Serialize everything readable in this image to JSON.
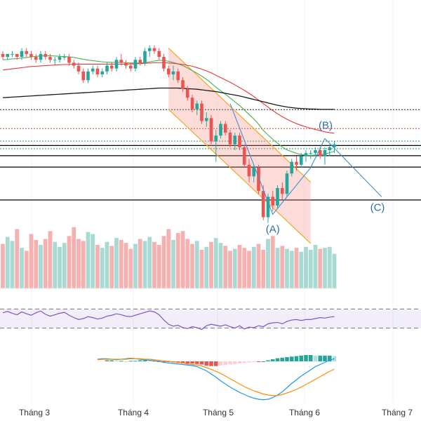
{
  "chart_data": {
    "type": "candlestick",
    "x_axis": {
      "tick_labels": [
        "Tháng 3",
        "Tháng 4",
        "Tháng 5",
        "Tháng 6",
        "Tháng 7"
      ]
    },
    "wave_labels": {
      "a": "(A)",
      "b": "(B)",
      "c": "(C)"
    },
    "price_pane": {
      "candles_ohlc": [
        [
          86,
          87,
          84,
          85
        ],
        [
          85,
          86,
          84,
          86
        ],
        [
          86,
          87,
          85,
          86
        ],
        [
          86,
          86,
          84,
          85
        ],
        [
          85,
          88,
          84,
          87
        ],
        [
          87,
          88,
          85,
          86
        ],
        [
          86,
          87,
          84,
          85
        ],
        [
          85,
          86,
          83,
          84
        ],
        [
          84,
          87,
          83,
          86
        ],
        [
          86,
          87,
          84,
          85
        ],
        [
          85,
          86,
          83,
          84
        ],
        [
          84,
          85,
          82,
          84
        ],
        [
          84,
          86,
          83,
          85
        ],
        [
          85,
          86,
          84,
          85
        ],
        [
          85,
          86,
          82,
          83
        ],
        [
          83,
          84,
          81,
          82
        ],
        [
          82,
          83,
          79,
          80
        ],
        [
          80,
          81,
          76,
          77
        ],
        [
          77,
          81,
          76,
          80
        ],
        [
          80,
          82,
          79,
          81
        ],
        [
          81,
          82,
          78,
          79
        ],
        [
          79,
          81,
          78,
          80
        ],
        [
          80,
          83,
          79,
          82
        ],
        [
          82,
          83,
          80,
          81
        ],
        [
          81,
          85,
          80,
          84
        ],
        [
          84,
          86,
          82,
          83
        ],
        [
          83,
          84,
          81,
          82
        ],
        [
          82,
          83,
          80,
          81
        ],
        [
          81,
          85,
          80,
          84
        ],
        [
          84,
          85,
          82,
          83
        ],
        [
          83,
          88,
          82,
          87
        ],
        [
          87,
          89,
          85,
          88
        ],
        [
          88,
          89,
          86,
          87
        ],
        [
          87,
          88,
          84,
          85
        ],
        [
          85,
          86,
          80,
          81
        ],
        [
          81,
          82,
          78,
          79
        ],
        [
          79,
          82,
          77,
          80
        ],
        [
          80,
          81,
          76,
          77
        ],
        [
          77,
          78,
          73,
          74
        ],
        [
          74,
          75,
          70,
          71
        ],
        [
          71,
          72,
          66,
          67
        ],
        [
          67,
          70,
          65,
          69
        ],
        [
          69,
          70,
          62,
          63
        ],
        [
          63,
          66,
          61,
          64
        ],
        [
          64,
          65,
          55,
          56
        ],
        [
          56,
          60,
          49,
          58
        ],
        [
          58,
          63,
          57,
          62
        ],
        [
          62,
          63,
          58,
          59
        ],
        [
          59,
          60,
          54,
          55
        ],
        [
          55,
          59,
          53,
          58
        ],
        [
          58,
          59,
          53,
          54
        ],
        [
          54,
          55,
          47,
          48
        ],
        [
          48,
          50,
          42,
          44
        ],
        [
          44,
          48,
          42,
          47
        ],
        [
          47,
          48,
          38,
          39
        ],
        [
          39,
          41,
          29,
          30
        ],
        [
          30,
          38,
          28,
          37
        ],
        [
          37,
          39,
          32,
          34
        ],
        [
          34,
          41,
          33,
          40
        ],
        [
          40,
          42,
          36,
          38
        ],
        [
          38,
          46,
          37,
          45
        ],
        [
          45,
          50,
          44,
          49
        ],
        [
          49,
          51,
          46,
          48
        ],
        [
          48,
          52,
          47,
          51
        ],
        [
          51,
          53,
          49,
          52
        ],
        [
          52,
          53,
          50,
          52
        ],
        [
          52,
          54,
          51,
          53
        ],
        [
          53,
          54,
          50,
          51
        ],
        [
          51,
          54,
          48,
          53
        ],
        [
          53,
          55,
          51,
          54
        ],
        [
          54,
          56,
          52,
          55
        ]
      ],
      "moving_averages": [
        {
          "color": "#4caf50",
          "values": [
            84,
            84.1,
            84.3,
            84.4,
            84.6,
            84.8,
            85,
            85.2,
            85.3,
            85.4,
            85.4,
            85.3,
            85.2,
            85.1,
            85,
            84.8,
            84.5,
            84.2,
            83.9,
            83.7,
            83.5,
            83.3,
            83.2,
            83.1,
            83.1,
            83.1,
            83,
            82.9,
            82.9,
            82.9,
            83,
            83.3,
            83.6,
            83.8,
            83.8,
            83.5,
            83.1,
            82.6,
            82,
            81.2,
            80.3,
            79.4,
            78.4,
            77.3,
            76,
            74.6,
            73.4,
            72.2,
            70.9,
            69.6,
            68.3,
            66.8,
            65.2,
            63.7,
            61.9,
            59.8,
            58.2,
            56.7,
            55.4,
            54.1,
            53.1,
            52.5,
            51.9,
            51.5,
            51.3,
            51.2,
            51.3,
            51.4,
            51.7,
            52.1,
            52.6
          ]
        },
        {
          "color": "#e53935",
          "values": [
            80.5,
            80.7,
            80.9,
            81.1,
            81.3,
            81.5,
            81.7,
            81.8,
            81.9,
            82,
            82.1,
            82.2,
            82.3,
            82.4,
            82.4,
            82.5,
            82.5,
            82.5,
            82.5,
            82.5,
            82.5,
            82.5,
            82.5,
            82.5,
            82.5,
            82.5,
            82.5,
            82.6,
            82.6,
            82.7,
            82.8,
            82.9,
            83,
            83,
            83,
            82.9,
            82.8,
            82.6,
            82.4,
            82.1,
            81.8,
            81.3,
            80.8,
            80.2,
            79.5,
            78.7,
            77.9,
            77.1,
            76.3,
            75.4,
            74.5,
            73.5,
            72.5,
            71.4,
            70.2,
            69,
            67.8,
            66.6,
            65.5,
            64.5,
            63.6,
            62.8,
            62.1,
            61.5,
            61,
            60.5,
            60.1,
            59.7,
            59.3,
            59,
            58.8
          ]
        },
        {
          "color": "#1a1a1a",
          "values": [
            71,
            71.1,
            71.2,
            71.3,
            71.4,
            71.5,
            71.6,
            71.7,
            71.8,
            71.9,
            72,
            72.1,
            72.2,
            72.3,
            72.4,
            72.5,
            72.6,
            72.7,
            72.8,
            72.9,
            73,
            73.1,
            73.2,
            73.3,
            73.4,
            73.5,
            73.6,
            73.7,
            73.8,
            73.9,
            74,
            74.1,
            74.2,
            74.3,
            74.3,
            74.3,
            74.3,
            74.3,
            74.2,
            74.1,
            74,
            73.9,
            73.7,
            73.5,
            73.3,
            73.1,
            72.8,
            72.5,
            72.2,
            71.9,
            71.6,
            71.2,
            70.8,
            70.4,
            70,
            69.6,
            69.2,
            68.8,
            68.4,
            68.1,
            67.8,
            67.6,
            67.4,
            67.3,
            67.2,
            67.1,
            67.1,
            67,
            67,
            67,
            67
          ]
        }
      ],
      "horizontal_levels": [
        {
          "value": 66.9,
          "color": "#1a1a1a",
          "style": "dotted"
        },
        {
          "value": 60.4,
          "color": "#e53935",
          "style": "dotted"
        },
        {
          "value": 56.1,
          "color": "#1a9e5b",
          "style": "dotted"
        },
        {
          "value": 54.6,
          "color": "#000000",
          "style": "solid"
        },
        {
          "value": 53.5,
          "color": "#1a9e5b",
          "style": "dotted"
        },
        {
          "value": 51.1,
          "color": "#000000",
          "style": "solid"
        },
        {
          "value": 47.2,
          "color": "#000000",
          "style": "solid"
        },
        {
          "value": 35.9,
          "color": "#000000",
          "style": "solid"
        }
      ],
      "channel": {
        "top": [
          [
            35,
            88
          ],
          [
            65,
            42
          ]
        ],
        "bottom": [
          [
            35,
            67
          ],
          [
            65,
            21
          ]
        ],
        "shift_at": [
          65,
          32
        ]
      },
      "wave_path": [
        [
          48,
          69
        ],
        [
          57,
          31
        ],
        [
          65,
          47
        ],
        [
          68,
          57
        ],
        [
          80,
          37
        ]
      ]
    },
    "volume_pane": {
      "values": [
        45,
        52,
        48,
        60,
        41,
        38,
        55,
        49,
        44,
        50,
        58,
        47,
        42,
        46,
        53,
        62,
        50,
        48,
        57,
        55,
        44,
        41,
        47,
        43,
        51,
        49,
        46,
        40,
        45,
        50,
        48,
        52,
        47,
        44,
        53,
        60,
        49,
        56,
        58,
        50,
        45,
        48,
        39,
        42,
        47,
        51,
        46,
        43,
        38,
        40,
        44,
        41,
        38,
        42,
        45,
        39,
        50,
        53,
        41,
        43,
        40,
        38,
        41,
        37,
        42,
        39,
        44,
        40,
        41,
        42,
        35
      ]
    },
    "rsi_pane": {
      "values": [
        62,
        65,
        61,
        58,
        64,
        60,
        57,
        62,
        66,
        59,
        55,
        58,
        61,
        63,
        57,
        52,
        48,
        50,
        54,
        52,
        49,
        51,
        55,
        57,
        60,
        58,
        55,
        54,
        57,
        60,
        63,
        66,
        64,
        58,
        47,
        38,
        34,
        36,
        31,
        29,
        33,
        31,
        27,
        35,
        38,
        36,
        34,
        37,
        33,
        30,
        35,
        28,
        32,
        31,
        35,
        33,
        39,
        41,
        42,
        39,
        44,
        47,
        48,
        46,
        48,
        48,
        50,
        52,
        51,
        53,
        54
      ],
      "range": [
        0,
        100
      ],
      "band": [
        30,
        70
      ]
    },
    "macd_pane": {
      "macd": [
        0.4,
        0.5,
        0.5,
        0.4,
        0.3,
        0.4,
        0.5,
        0.6,
        0.5,
        0.4,
        0.3,
        0.2,
        0.1,
        0,
        -0.2,
        -0.3,
        -0.4,
        -0.5,
        -0.6,
        -0.7,
        -0.8,
        -1,
        -1.4,
        -1.8,
        -2.4,
        -3,
        -3.7,
        -4.3,
        -4.9,
        -5.4,
        -5.9,
        -6.3,
        -6.7,
        -7,
        -7.2,
        -7.3,
        -7.2,
        -6.9,
        -6.4,
        -5.8,
        -5,
        -4.2,
        -3.5,
        -2.8,
        -2.2,
        -1.6,
        -1,
        -0.6,
        -0.2,
        0.2,
        0.5
      ],
      "signal": [
        0.3,
        0.4,
        0.4,
        0.4,
        0.4,
        0.4,
        0.4,
        0.5,
        0.5,
        0.5,
        0.4,
        0.4,
        0.3,
        0.2,
        0.1,
        0,
        -0.1,
        -0.2,
        -0.3,
        -0.5,
        -0.6,
        -0.7,
        -0.9,
        -1.2,
        -1.5,
        -1.9,
        -2.3,
        -2.8,
        -3.3,
        -3.8,
        -4.3,
        -4.8,
        -5.2,
        -5.6,
        -5.9,
        -6.2,
        -6.4,
        -6.5,
        -6.5,
        -6.3,
        -6,
        -5.7,
        -5.3,
        -4.9,
        -4.4,
        -3.9,
        -3.4,
        -2.9,
        -2.4,
        -1.9,
        -1.5
      ],
      "histogram": [
        0.2,
        0.2,
        0.1,
        0.1,
        0,
        0.1,
        0.1,
        0.2,
        0.2,
        0.1,
        0.1,
        -0.1,
        -0.1,
        -0.1,
        -0.2,
        -0.3,
        -0.4,
        -0.4,
        -0.4,
        -0.5,
        -0.6,
        -0.8,
        -0.9,
        -0.9,
        -0.8,
        -0.7,
        -0.6,
        -0.5,
        -0.4,
        -0.3,
        -0.2,
        -0.1,
        -0.1,
        0,
        0.2,
        0.4,
        0.6,
        0.7,
        0.8,
        0.9,
        1,
        1.1,
        1.2,
        1.2,
        1.1,
        1.1,
        1.1,
        1.1,
        1
      ]
    }
  }
}
